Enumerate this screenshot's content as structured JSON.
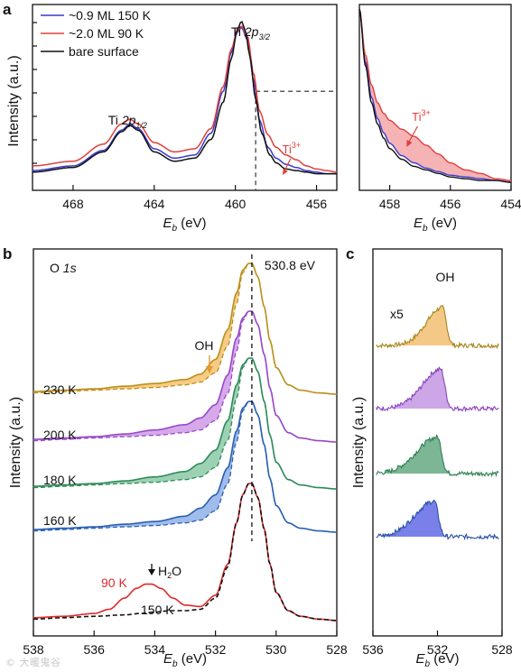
{
  "figure": {
    "watermark": "© 大暖鬼谷"
  },
  "chart_data": [
    {
      "panel": "a",
      "type": "line",
      "xlabel_main": "E",
      "xlabel_sub": "b",
      "xlabel_unit": " (eV)",
      "ylabel": "Intensity (a.u.)",
      "xlim": [
        470,
        455
      ],
      "xticks": [
        468,
        464,
        460,
        456
      ],
      "ylim": [
        0,
        1.05
      ],
      "legend": {
        "placement": "top-left",
        "entries": [
          {
            "name": "~0.9 ML 150 K",
            "color": "#3a3acb"
          },
          {
            "name": "~2.0 ML 90 K",
            "color": "#e0403c"
          },
          {
            "name": "bare surface",
            "color": "#111111"
          }
        ]
      },
      "annotations": [
        {
          "text": "Ti 2p3/2",
          "base": "Ti ",
          "ital": "2p",
          "sub": "3/2",
          "x": 459.7
        },
        {
          "text": "Ti 2p1/2",
          "base": "Ti ",
          "ital": "2p",
          "sub": "1/2",
          "x": 465.4
        },
        {
          "text": "Ti3+",
          "base": "Ti",
          "sup": "3+",
          "x": 457.5,
          "color": "#e0403c"
        }
      ],
      "series": [
        {
          "name": "~0.9 ML 150 K",
          "color": "#3a3acb",
          "x": [
            470,
            468,
            466.5,
            465.6,
            465.2,
            464.8,
            464,
            463,
            462,
            461.2,
            460.6,
            460.2,
            459.9,
            459.7,
            459.4,
            459.1,
            458.8,
            458.4,
            458,
            457.5,
            457,
            456.5,
            456,
            455.5,
            455
          ],
          "y": [
            0.04,
            0.07,
            0.17,
            0.3,
            0.34,
            0.31,
            0.18,
            0.12,
            0.14,
            0.28,
            0.55,
            0.8,
            0.93,
            0.96,
            0.88,
            0.62,
            0.36,
            0.19,
            0.12,
            0.08,
            0.06,
            0.04,
            0.03,
            0.02,
            0.02
          ]
        },
        {
          "name": "~2.0 ML 90 K",
          "color": "#e0403c",
          "x": [
            470,
            468,
            466.5,
            465.6,
            465.2,
            464.8,
            464,
            463,
            462,
            461.2,
            460.6,
            460.2,
            459.9,
            459.7,
            459.4,
            459.1,
            458.8,
            458.4,
            458,
            457.5,
            457,
            456.5,
            456,
            455.5,
            455
          ],
          "y": [
            0.07,
            0.1,
            0.21,
            0.34,
            0.37,
            0.34,
            0.22,
            0.16,
            0.18,
            0.31,
            0.58,
            0.82,
            0.94,
            0.97,
            0.9,
            0.66,
            0.42,
            0.27,
            0.19,
            0.14,
            0.11,
            0.07,
            0.05,
            0.04,
            0.03
          ]
        },
        {
          "name": "bare surface",
          "color": "#111111",
          "x": [
            470,
            468,
            466.5,
            465.6,
            465.2,
            464.8,
            464,
            463,
            462,
            461.2,
            460.6,
            460.2,
            459.9,
            459.7,
            459.5,
            459.3,
            459,
            458.7,
            458.3,
            458,
            457.5,
            457,
            456.5,
            456,
            455.5,
            455
          ],
          "y": [
            0.03,
            0.06,
            0.16,
            0.29,
            0.33,
            0.3,
            0.16,
            0.1,
            0.12,
            0.24,
            0.48,
            0.76,
            0.95,
            1.0,
            0.94,
            0.78,
            0.5,
            0.28,
            0.14,
            0.09,
            0.05,
            0.04,
            0.03,
            0.02,
            0.02,
            0.02
          ]
        }
      ],
      "guides": {
        "dashed_vertical_x": 459.0,
        "dashed_horizontal_from_x": 459.0,
        "dashed_horizontal_y": 0.55
      }
    },
    {
      "panel": "a-inset",
      "type": "area",
      "xlabel_main": "E",
      "xlabel_sub": "b",
      "xlabel_unit": " (eV)",
      "xlim": [
        459,
        454
      ],
      "xticks": [
        458,
        456,
        454
      ],
      "ylim": [
        0,
        1
      ],
      "annotations": [
        {
          "text": "Ti3+",
          "base": "Ti",
          "sup": "3+",
          "x": 457.2,
          "color": "#e0403c"
        }
      ],
      "series": [
        {
          "name": "~0.9 ML 150 K",
          "color": "#3a3acb",
          "x": [
            459,
            458.8,
            458.6,
            458.4,
            458.2,
            458,
            457.6,
            457.2,
            456.8,
            456.4,
            456,
            455.5,
            455,
            454.5,
            454
          ],
          "y": [
            1.0,
            0.7,
            0.5,
            0.38,
            0.3,
            0.24,
            0.17,
            0.13,
            0.1,
            0.08,
            0.06,
            0.05,
            0.04,
            0.03,
            0.02
          ]
        },
        {
          "name": "~2.0 ML 90 K",
          "color": "#e0403c",
          "x": [
            459,
            458.8,
            458.6,
            458.4,
            458.2,
            458,
            457.6,
            457.2,
            456.8,
            456.4,
            456,
            455.5,
            455,
            454.5,
            454
          ],
          "y": [
            1.0,
            0.74,
            0.57,
            0.47,
            0.41,
            0.37,
            0.32,
            0.28,
            0.23,
            0.18,
            0.13,
            0.09,
            0.07,
            0.04,
            0.03
          ]
        },
        {
          "name": "bare surface",
          "color": "#111111",
          "x": [
            459,
            458.8,
            458.6,
            458.4,
            458.2,
            458,
            457.6,
            457.2,
            456.8,
            456.4,
            456,
            455.5,
            455,
            454.5,
            454
          ],
          "y": [
            1.0,
            0.68,
            0.47,
            0.35,
            0.27,
            0.21,
            0.15,
            0.11,
            0.09,
            0.07,
            0.05,
            0.04,
            0.03,
            0.03,
            0.02
          ]
        }
      ]
    },
    {
      "panel": "b",
      "type": "line",
      "title_prefix": "O ",
      "title_ital": "1s",
      "xlabel_main": "E",
      "xlabel_sub": "b",
      "xlabel_unit": " (eV)",
      "ylabel": "Intensity (a.u.)",
      "xlim": [
        538,
        528
      ],
      "xticks": [
        538,
        536,
        534,
        532,
        530,
        528
      ],
      "peak_label": "530.8 eV",
      "peak_x": 530.8,
      "oh_label": "OH",
      "water_label": "H",
      "water_sub": "2",
      "water_tail": "O",
      "series": [
        {
          "name": "230 K",
          "color": "#b8901e",
          "offset": 4.6,
          "fill": "#f6c26e",
          "x": [
            538,
            537,
            536,
            535,
            534,
            533,
            532.5,
            532,
            531.6,
            531.3,
            531.1,
            530.9,
            530.8,
            530.6,
            530.4,
            530.2,
            530,
            529.6,
            529.2,
            528.6,
            528
          ],
          "y": [
            0.04,
            0.05,
            0.06,
            0.08,
            0.1,
            0.13,
            0.17,
            0.28,
            0.5,
            0.78,
            0.95,
            1.0,
            1.0,
            0.9,
            0.68,
            0.42,
            0.22,
            0.09,
            0.05,
            0.03,
            0.02
          ],
          "ref_y": [
            0.03,
            0.04,
            0.05,
            0.06,
            0.07,
            0.09,
            0.11,
            0.18,
            0.38,
            0.7,
            0.93,
            1.0,
            1.0,
            0.9,
            0.68,
            0.42,
            0.22,
            0.09,
            0.05,
            0.03,
            0.02
          ]
        },
        {
          "name": "200 K",
          "color": "#9848c8",
          "offset": 3.45,
          "fill": "#cf9ae6",
          "x": [
            538,
            537,
            536,
            535,
            534,
            533,
            532.5,
            532,
            531.6,
            531.3,
            531.1,
            530.9,
            530.8,
            530.6,
            530.4,
            530.2,
            530,
            529.6,
            529.2,
            528.6,
            528
          ],
          "y": [
            0.04,
            0.05,
            0.06,
            0.08,
            0.11,
            0.15,
            0.2,
            0.3,
            0.52,
            0.8,
            0.95,
            1.0,
            1.0,
            0.9,
            0.68,
            0.42,
            0.22,
            0.09,
            0.05,
            0.03,
            0.02
          ],
          "ref_y": [
            0.03,
            0.04,
            0.05,
            0.06,
            0.07,
            0.09,
            0.11,
            0.18,
            0.38,
            0.7,
            0.93,
            1.0,
            1.0,
            0.9,
            0.68,
            0.42,
            0.22,
            0.09,
            0.05,
            0.03,
            0.02
          ]
        },
        {
          "name": "180 K",
          "color": "#2e8a5a",
          "offset": 2.3,
          "fill": "#8cc9a6",
          "x": [
            538,
            537,
            536,
            535,
            534,
            533,
            532.5,
            532,
            531.6,
            531.3,
            531.1,
            530.9,
            530.8,
            530.6,
            530.4,
            530.2,
            530,
            529.6,
            529.2,
            528.6,
            528
          ],
          "y": [
            0.04,
            0.05,
            0.06,
            0.08,
            0.11,
            0.15,
            0.21,
            0.31,
            0.53,
            0.8,
            0.95,
            1.0,
            1.0,
            0.9,
            0.68,
            0.42,
            0.22,
            0.09,
            0.05,
            0.03,
            0.02
          ],
          "ref_y": [
            0.03,
            0.04,
            0.05,
            0.06,
            0.07,
            0.09,
            0.11,
            0.18,
            0.38,
            0.7,
            0.93,
            1.0,
            1.0,
            0.9,
            0.68,
            0.42,
            0.22,
            0.09,
            0.05,
            0.03,
            0.02
          ]
        },
        {
          "name": "160 K",
          "color": "#2a5fb0",
          "offset": 1.15,
          "fill": "#8fb0e8",
          "x": [
            538,
            537,
            536,
            535,
            534,
            533,
            532.5,
            532,
            531.6,
            531.3,
            531.1,
            530.9,
            530.8,
            530.6,
            530.4,
            530.2,
            530,
            529.6,
            529.2,
            528.6,
            528
          ],
          "y": [
            0.04,
            0.05,
            0.06,
            0.08,
            0.1,
            0.14,
            0.2,
            0.3,
            0.5,
            0.78,
            0.95,
            1.0,
            1.0,
            0.9,
            0.68,
            0.42,
            0.22,
            0.09,
            0.05,
            0.03,
            0.02
          ],
          "ref_y": [
            0.03,
            0.04,
            0.05,
            0.06,
            0.07,
            0.09,
            0.11,
            0.18,
            0.38,
            0.7,
            0.93,
            1.0,
            1.0,
            0.9,
            0.68,
            0.42,
            0.22,
            0.09,
            0.05,
            0.03,
            0.02
          ]
        },
        {
          "name": "90 K",
          "color": "#e0282a",
          "offset": 0,
          "x": [
            538,
            537,
            536,
            535.5,
            535,
            534.6,
            534.3,
            534.1,
            533.8,
            533.4,
            533,
            532.5,
            532,
            531.6,
            531.3,
            531.1,
            530.9,
            530.8,
            530.6,
            530.4,
            530.2,
            530,
            529.6,
            529.2,
            528.6,
            528
          ],
          "y": [
            0.04,
            0.05,
            0.07,
            0.1,
            0.18,
            0.25,
            0.28,
            0.28,
            0.25,
            0.18,
            0.13,
            0.12,
            0.2,
            0.42,
            0.72,
            0.92,
            1.0,
            1.0,
            0.9,
            0.68,
            0.42,
            0.22,
            0.09,
            0.05,
            0.03,
            0.02
          ]
        },
        {
          "name": "150 K",
          "color": "#111111",
          "offset": 0,
          "dashed": true,
          "x": [
            538,
            537,
            536,
            535,
            534.5,
            534,
            533.5,
            533,
            532.5,
            532,
            531.6,
            531.3,
            531.1,
            530.9,
            530.8,
            530.6,
            530.4,
            530.2,
            530,
            529.6,
            529.2,
            528.6,
            528
          ],
          "y": [
            0.03,
            0.04,
            0.05,
            0.06,
            0.07,
            0.08,
            0.09,
            0.09,
            0.1,
            0.18,
            0.4,
            0.72,
            0.92,
            1.0,
            1.0,
            0.9,
            0.68,
            0.42,
            0.22,
            0.09,
            0.05,
            0.03,
            0.02
          ]
        }
      ]
    },
    {
      "panel": "c",
      "type": "area",
      "xlabel_main": "E",
      "xlabel_sub": "b",
      "xlabel_unit": " (eV)",
      "ylabel": "Intensity (a.u.)",
      "title": "OH",
      "scale_label": "x5",
      "xlim": [
        536,
        528
      ],
      "xticks": [
        536,
        532,
        528
      ],
      "series": [
        {
          "name": "230 K",
          "color": "#a8841a",
          "fill": "#f3c27a",
          "center": 531.7,
          "width": 1.4,
          "height": 0.75
        },
        {
          "name": "200 K",
          "color": "#8a40c0",
          "fill": "#c79ce3",
          "center": 531.8,
          "width": 1.6,
          "height": 0.78
        },
        {
          "name": "180 K",
          "color": "#2a7f52",
          "fill": "#6fae89",
          "center": 532.0,
          "width": 1.8,
          "height": 0.72
        },
        {
          "name": "160 K",
          "color": "#244fa8",
          "fill": "#6b72e8",
          "center": 532.2,
          "width": 1.7,
          "height": 0.7
        }
      ]
    }
  ]
}
